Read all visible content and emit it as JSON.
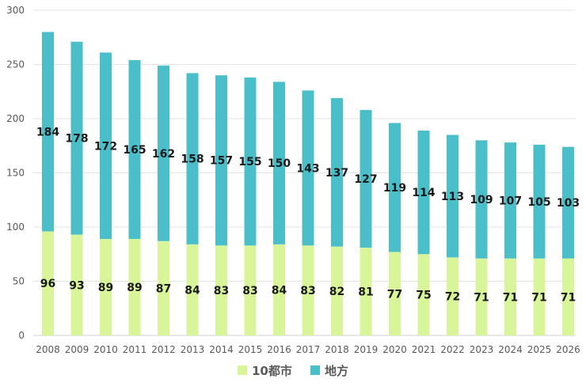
{
  "chart_data": {
    "type": "bar",
    "stacked": true,
    "categories": [
      "2008",
      "2009",
      "2010",
      "2011",
      "2012",
      "2013",
      "2014",
      "2015",
      "2016",
      "2017",
      "2018",
      "2019",
      "2020",
      "2021",
      "2022",
      "2023",
      "2024",
      "2025",
      "2026"
    ],
    "series": [
      {
        "name": "10都市",
        "color": "#d9f59a",
        "values": [
          96,
          93,
          89,
          89,
          87,
          84,
          83,
          83,
          84,
          83,
          82,
          81,
          77,
          75,
          72,
          71,
          71,
          71,
          71
        ]
      },
      {
        "name": "地方",
        "color": "#4abfc9",
        "values": [
          184,
          178,
          172,
          165,
          162,
          158,
          157,
          155,
          150,
          143,
          137,
          127,
          119,
          114,
          113,
          109,
          107,
          105,
          103
        ]
      }
    ],
    "ylim": [
      0,
      300
    ],
    "yticks": [
      0,
      50,
      100,
      150,
      200,
      250,
      300
    ],
    "grid": true,
    "legend_position": "bottom",
    "data_labels": true
  }
}
